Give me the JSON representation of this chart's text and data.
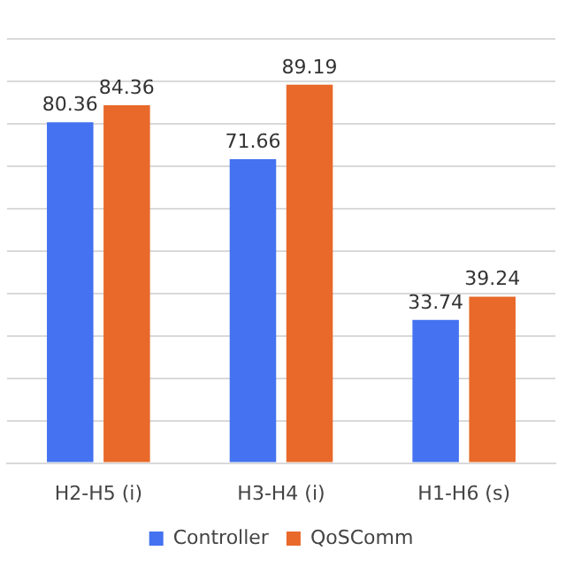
{
  "chart_data": {
    "type": "bar",
    "categories": [
      "H2-H5 (i)",
      "H3-H4 (i)",
      "H1-H6 (s)"
    ],
    "series": [
      {
        "name": "Controller",
        "color": "#4472f0",
        "values": [
          80.36,
          71.66,
          33.74
        ]
      },
      {
        "name": "QoSComm",
        "color": "#e8692a",
        "values": [
          84.36,
          89.19,
          39.24
        ]
      }
    ],
    "ylim": [
      0,
      100
    ],
    "yticks": [
      0,
      10,
      20,
      30,
      40,
      50,
      60,
      70,
      80,
      90,
      100
    ],
    "grid": "y",
    "tick_labels": "x",
    "legend": "bottom",
    "data_labels": true
  }
}
